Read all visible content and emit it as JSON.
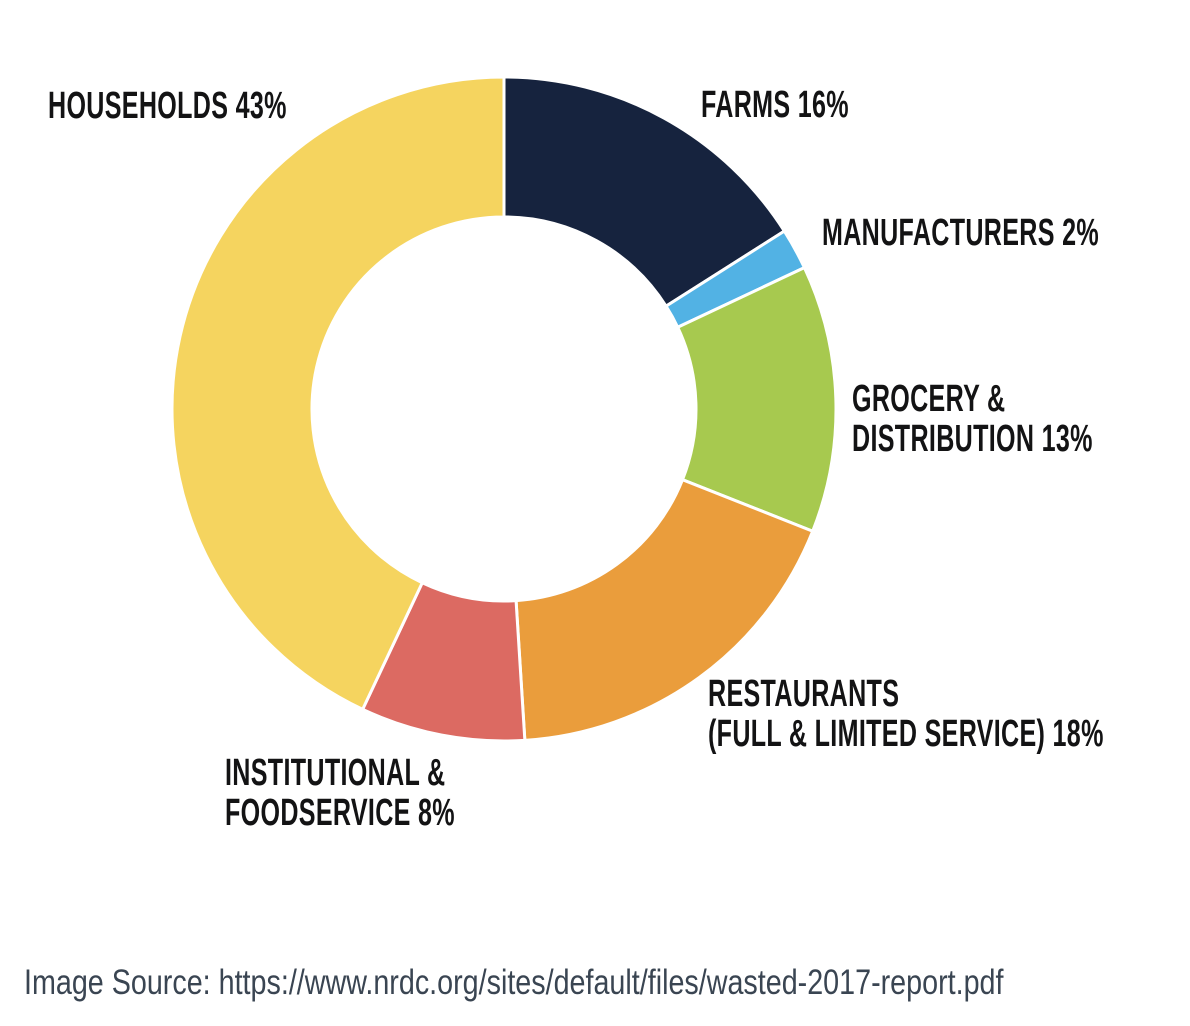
{
  "chart_data": {
    "type": "pie",
    "subtype": "donut",
    "title": "",
    "start_angle": "12 o'clock",
    "direction": "clockwise",
    "unit": "%",
    "total": 100,
    "legend_position": "labels-around-chart",
    "segments": [
      {
        "name": "Farms",
        "value": 16,
        "color": "#16233e",
        "label": "FARMS 16%"
      },
      {
        "name": "Manufacturers",
        "value": 2,
        "color": "#52b2e4",
        "label": "MANUFACTURERS 2%"
      },
      {
        "name": "Grocery & Distribution",
        "value": 13,
        "color": "#a7c94f",
        "label": "GROCERY & DISTRIBUTION 13%"
      },
      {
        "name": "Restaurants (Full & Limited Service)",
        "value": 18,
        "color": "#ea9d3c",
        "label": "RESTAURANTS (FULL & LIMITED SERVICE) 18%"
      },
      {
        "name": "Institutional & Foodservice",
        "value": 8,
        "color": "#dc6a62",
        "label": "INSTITUTIONAL & FOODSERVICE 8%"
      },
      {
        "name": "Households",
        "value": 43,
        "color": "#f5d45f",
        "label": "HOUSEHOLDS 43%"
      }
    ]
  },
  "annotations": {
    "households": {
      "lines": [
        "HOUSEHOLDS 43%"
      ]
    },
    "farms": {
      "lines": [
        "FARMS 16%"
      ]
    },
    "manufacturers": {
      "lines": [
        "MANUFACTURERS 2%"
      ]
    },
    "grocery": {
      "lines": [
        "GROCERY &",
        "DISTRIBUTION 13%"
      ]
    },
    "restaurants": {
      "lines": [
        "RESTAURANTS",
        "(FULL & LIMITED SERVICE) 18%"
      ]
    },
    "institutional": {
      "lines": [
        "INSTITUTIONAL &",
        "FOODSERVICE 8%"
      ]
    }
  },
  "caption": {
    "text": "Image Source: https://www.nrdc.org/sites/default/files/wasted-2017-report.pdf",
    "color": "#3a4552"
  },
  "style": {
    "label_color": "#131314",
    "background": "#ffffff",
    "slice_gap_color": "#ffffff"
  }
}
